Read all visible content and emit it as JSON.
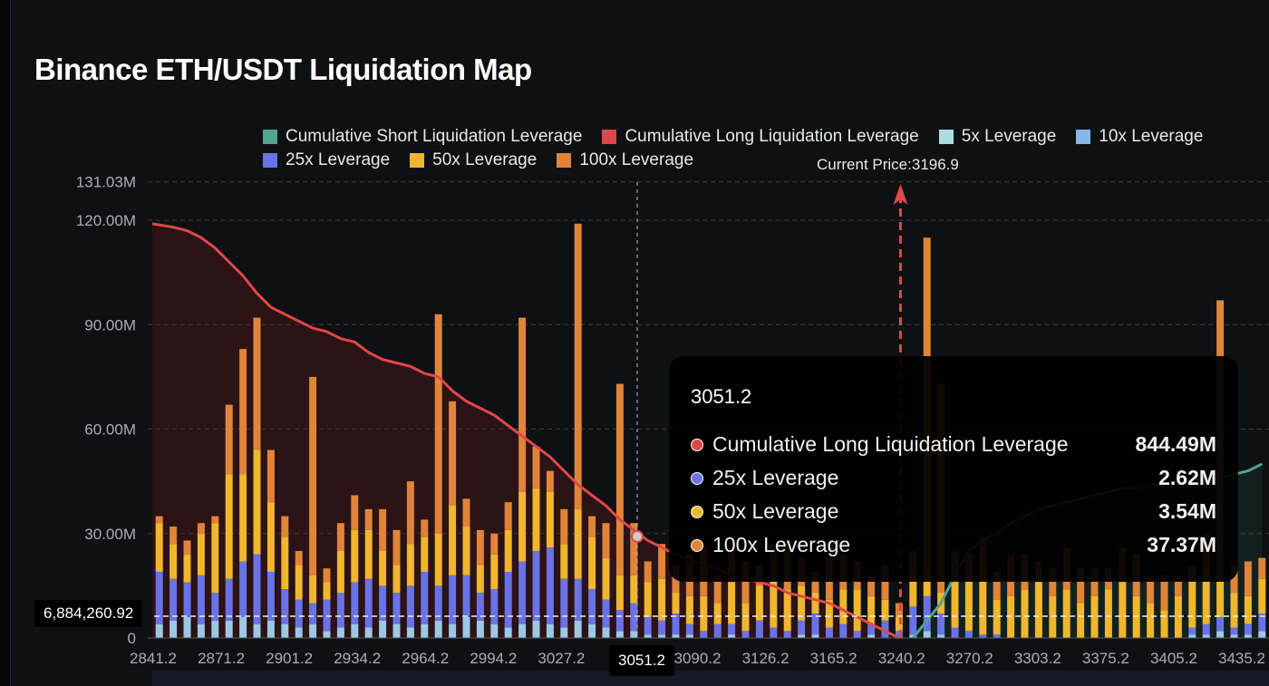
{
  "title": "Binance ETH/USDT Liquidation Map",
  "legend": [
    {
      "label": "Cumulative Short Liquidation Leverage",
      "color": "#4fa58e"
    },
    {
      "label": "Cumulative Long Liquidation Leverage",
      "color": "#e04848"
    },
    {
      "label": "5x Leverage",
      "color": "#a8dedd"
    },
    {
      "label": "10x Leverage",
      "color": "#84b6e8"
    },
    {
      "label": "25x Leverage",
      "color": "#6a72e6"
    },
    {
      "label": "50x Leverage",
      "color": "#f0b62e"
    },
    {
      "label": "100x Leverage",
      "color": "#e0843a"
    }
  ],
  "current_price_label": "Current Price:3196.9",
  "crosshair": {
    "y_label": "6,884,260.92",
    "x_label": "3051.2"
  },
  "tooltip": {
    "header": "3051.2",
    "rows": [
      {
        "label": "Cumulative Long Liquidation Leverage",
        "value": "844.49M",
        "color": "#e04848"
      },
      {
        "label": "25x Leverage",
        "value": "2.62M",
        "color": "#6a72e6"
      },
      {
        "label": "50x Leverage",
        "value": "3.54M",
        "color": "#f0b62e"
      },
      {
        "label": "100x Leverage",
        "value": "37.37M",
        "color": "#e0843a"
      }
    ]
  },
  "chart_data": {
    "type": "bar",
    "title": "Binance ETH/USDT Liquidation Map",
    "stacked": true,
    "grid": true,
    "legend_position": "top-right",
    "ylim": [
      0,
      131.03
    ],
    "y_unit": "M",
    "y_ticks": [
      "0",
      "30.00M",
      "60.00M",
      "90.00M",
      "120.00M",
      "131.03M"
    ],
    "y_tick_values": [
      0,
      30,
      60,
      90,
      120,
      131.03
    ],
    "x_tick_labels": [
      "2841.2",
      "2871.2",
      "2901.2",
      "2934.2",
      "2964.2",
      "2994.2",
      "3027.2",
      "",
      "3090.2",
      "3126.2",
      "3165.2",
      "3240.2",
      "3270.2",
      "3303.2",
      "3375.2",
      "3405.2",
      "3435.2"
    ],
    "current_price": 3196.9,
    "current_price_bar_index": 53.6,
    "series": [
      {
        "name": "5x/10x Leverage",
        "color": "#9cc8e6",
        "values": [
          4,
          5,
          6,
          4,
          5,
          5,
          6,
          4,
          5,
          4,
          3,
          4,
          2,
          3,
          4,
          3,
          5,
          4,
          3,
          4,
          5,
          4,
          6,
          5,
          4,
          3,
          4,
          5,
          4,
          3,
          5,
          4,
          3,
          2,
          2,
          1,
          1,
          1,
          1,
          0,
          0,
          1,
          0,
          0,
          0,
          0,
          1,
          1,
          0,
          0,
          0,
          1,
          0,
          0,
          1,
          2,
          1,
          0,
          0,
          0,
          0,
          0,
          0,
          0,
          0,
          0,
          0,
          0,
          0,
          0,
          0,
          0,
          0,
          0,
          1,
          1,
          2,
          1,
          1,
          2
        ]
      },
      {
        "name": "25x Leverage",
        "color": "#6a72e6",
        "values": [
          15,
          12,
          10,
          14,
          8,
          12,
          16,
          20,
          14,
          10,
          8,
          6,
          9,
          10,
          12,
          14,
          10,
          9,
          12,
          15,
          10,
          14,
          12,
          8,
          10,
          16,
          18,
          20,
          22,
          14,
          12,
          10,
          8,
          6,
          8,
          5,
          4,
          6,
          3,
          2,
          4,
          3,
          2,
          5,
          3,
          2,
          4,
          6,
          3,
          4,
          2,
          3,
          5,
          2,
          8,
          10,
          6,
          3,
          2,
          1,
          1,
          0,
          0,
          0,
          0,
          0,
          0,
          0,
          0,
          0,
          0,
          0,
          0,
          0,
          2,
          3,
          4,
          2,
          3,
          5
        ]
      },
      {
        "name": "50x Leverage",
        "color": "#f0b62e",
        "values": [
          14,
          10,
          8,
          12,
          20,
          30,
          25,
          30,
          20,
          15,
          10,
          8,
          5,
          12,
          15,
          14,
          10,
          8,
          12,
          10,
          15,
          20,
          14,
          8,
          10,
          12,
          20,
          18,
          16,
          10,
          20,
          15,
          12,
          10,
          8,
          10,
          12,
          6,
          8,
          10,
          6,
          12,
          8,
          10,
          14,
          12,
          10,
          6,
          8,
          10,
          12,
          8,
          6,
          4,
          10,
          8,
          6,
          14,
          16,
          18,
          10,
          12,
          14,
          16,
          12,
          14,
          10,
          12,
          14,
          16,
          12,
          10,
          8,
          12,
          14,
          16,
          12,
          10,
          8,
          10
        ]
      },
      {
        "name": "100x Leverage",
        "color": "#e0843a",
        "values": [
          2,
          5,
          4,
          3,
          2,
          20,
          36,
          38,
          15,
          6,
          4,
          57,
          4,
          8,
          10,
          6,
          12,
          10,
          18,
          5,
          63,
          30,
          8,
          10,
          6,
          8,
          50,
          12,
          6,
          10,
          82,
          6,
          10,
          55,
          15,
          6,
          10,
          8,
          12,
          14,
          8,
          10,
          12,
          6,
          10,
          14,
          8,
          6,
          12,
          10,
          8,
          6,
          10,
          4,
          6,
          95,
          60,
          8,
          6,
          10,
          8,
          12,
          10,
          6,
          8,
          12,
          10,
          8,
          6,
          10,
          12,
          8,
          10,
          6,
          4,
          10,
          79,
          8,
          10,
          6
        ]
      }
    ],
    "lines": [
      {
        "name": "Cumulative Long Liquidation Leverage",
        "color": "#e04848",
        "values": [
          119,
          118,
          117,
          115,
          112,
          108,
          104,
          99,
          95,
          93,
          91,
          89,
          88,
          86,
          85,
          82,
          80,
          79,
          78,
          76,
          75,
          71,
          68,
          66,
          64,
          61,
          58,
          55,
          52,
          48,
          44,
          41,
          38,
          34,
          31,
          28,
          26,
          24,
          22,
          21,
          20,
          18,
          17,
          16,
          15,
          13,
          12,
          11,
          10,
          8,
          6,
          4,
          2,
          0,
          null,
          null,
          null,
          null,
          null,
          null,
          null,
          null,
          null,
          null,
          null,
          null,
          null,
          null,
          null,
          null,
          null,
          null,
          null,
          null,
          null,
          null,
          null,
          null,
          null,
          null
        ]
      },
      {
        "name": "Cumulative Short Liquidation Leverage",
        "color": "#4fa58e",
        "values": [
          null,
          null,
          null,
          null,
          null,
          null,
          null,
          null,
          null,
          null,
          null,
          null,
          null,
          null,
          null,
          null,
          null,
          null,
          null,
          null,
          null,
          null,
          null,
          null,
          null,
          null,
          null,
          null,
          null,
          null,
          null,
          null,
          null,
          null,
          null,
          null,
          null,
          null,
          null,
          null,
          null,
          null,
          null,
          null,
          null,
          null,
          null,
          null,
          null,
          null,
          null,
          null,
          null,
          null,
          0,
          5,
          10,
          18,
          25,
          28,
          30,
          33,
          35,
          37,
          38,
          39,
          40,
          41,
          42,
          43,
          43,
          44,
          44,
          45,
          45,
          46,
          46,
          47,
          48,
          50
        ]
      }
    ]
  }
}
